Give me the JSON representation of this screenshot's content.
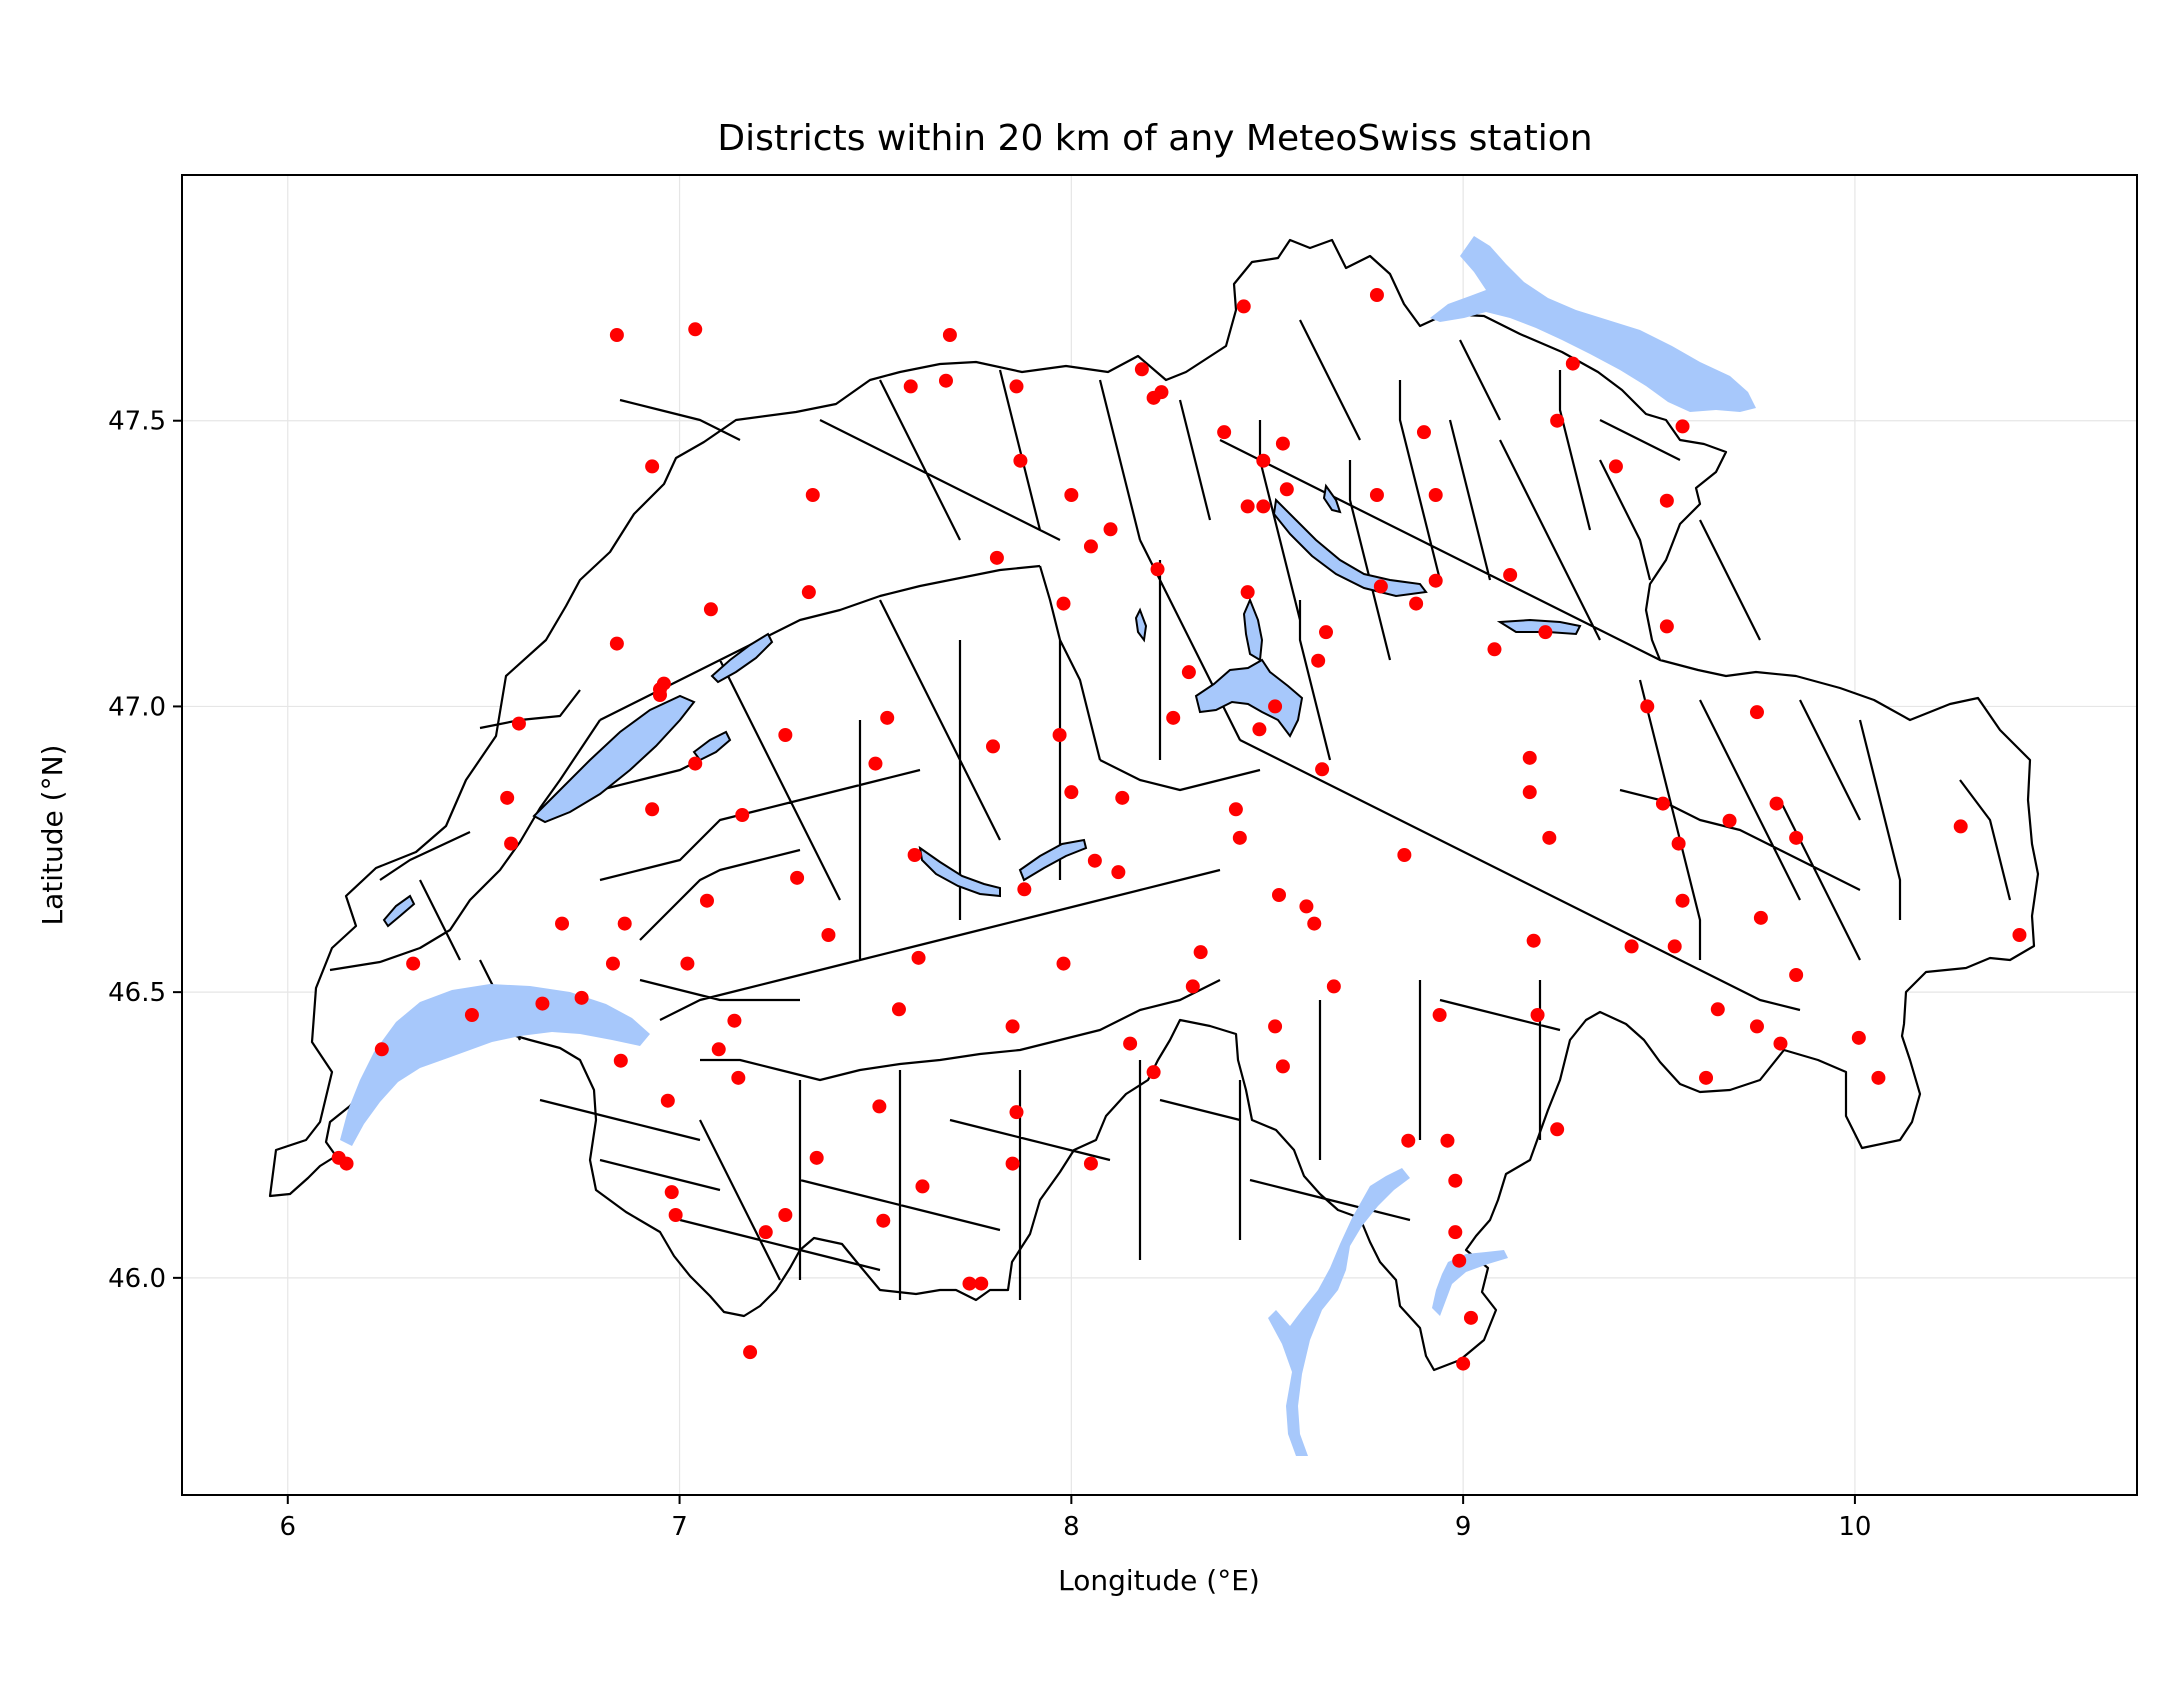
{
  "chart_data": {
    "type": "scatter",
    "title": "Districts within 20 km of any MeteoSwiss station",
    "xlabel": "Longitude (°E)",
    "ylabel": "Latitude (°N)",
    "xlim": [
      5.73,
      10.72
    ],
    "ylim": [
      45.62,
      47.93
    ],
    "xticks": [
      6,
      7,
      8,
      9,
      10
    ],
    "xtick_labels": [
      "6",
      "7",
      "8",
      "9",
      "10"
    ],
    "yticks": [
      46.0,
      46.5,
      47.0,
      47.5
    ],
    "ytick_labels": [
      "46.0",
      "46.5",
      "47.0",
      "47.5"
    ],
    "grid": true,
    "colors": {
      "points": "#ff0000",
      "lakes": "#a7c8fb",
      "borders": "#000000",
      "background": "#ffffff"
    },
    "series": [
      {
        "marker": "dot",
        "x": [
          6.13,
          6.15,
          6.24,
          6.32,
          6.47,
          6.57,
          6.56,
          6.59,
          6.65,
          6.7,
          6.75,
          6.83,
          6.84,
          6.86,
          6.85,
          6.93,
          6.95,
          6.97,
          6.98,
          7.04,
          7.08,
          7.07,
          7.1,
          7.14,
          7.15,
          7.16,
          7.02,
          6.95,
          6.99,
          6.93,
          7.22,
          7.27,
          7.27,
          7.3,
          7.35,
          7.34,
          7.38,
          7.33,
          7.51,
          7.52,
          7.5,
          7.53,
          7.56,
          7.6,
          7.61,
          7.62,
          7.59,
          7.68,
          7.74,
          7.77,
          7.81,
          7.8,
          7.85,
          7.85,
          7.86,
          7.87,
          7.88,
          7.86,
          7.97,
          7.98,
          7.98,
          8.0,
          8.0,
          8.05,
          8.05,
          8.06,
          8.1,
          8.13,
          8.12,
          8.15,
          8.18,
          8.21,
          8.22,
          8.23,
          8.21,
          8.26,
          8.3,
          8.31,
          8.33,
          8.39,
          8.42,
          8.43,
          8.44,
          8.45,
          8.45,
          8.48,
          8.49,
          8.49,
          8.52,
          8.53,
          8.52,
          8.54,
          8.54,
          8.55,
          8.6,
          8.62,
          8.63,
          8.64,
          8.65,
          8.67,
          8.78,
          8.79,
          8.78,
          8.85,
          8.86,
          8.88,
          8.9,
          8.93,
          8.93,
          8.94,
          8.96,
          8.98,
          8.98,
          8.99,
          9.0,
          9.02,
          9.08,
          9.12,
          9.17,
          9.17,
          9.18,
          9.19,
          9.21,
          9.22,
          9.24,
          9.24,
          9.28,
          9.39,
          9.43,
          9.47,
          9.51,
          9.52,
          9.52,
          9.54,
          9.55,
          9.56,
          9.56,
          9.62,
          9.65,
          9.68,
          9.75,
          9.76,
          9.75,
          9.8,
          9.81,
          9.85,
          9.85,
          10.01,
          10.06,
          10.27,
          10.42,
          6.96,
          7.18,
          7.69,
          7.04,
          6.84
        ],
        "y": [
          46.21,
          46.2,
          46.4,
          46.55,
          46.46,
          46.76,
          46.84,
          46.97,
          46.48,
          46.62,
          46.49,
          46.55,
          47.11,
          46.62,
          46.38,
          46.82,
          47.03,
          46.31,
          46.15,
          46.9,
          47.17,
          46.66,
          46.4,
          46.45,
          46.35,
          46.81,
          46.55,
          47.02,
          46.11,
          47.42,
          46.08,
          46.11,
          46.95,
          46.7,
          46.21,
          47.37,
          46.6,
          47.2,
          46.3,
          46.1,
          46.9,
          46.98,
          46.47,
          46.74,
          46.56,
          46.16,
          47.56,
          47.57,
          45.99,
          45.99,
          47.26,
          46.93,
          46.2,
          46.44,
          47.56,
          47.43,
          46.68,
          46.29,
          46.95,
          46.55,
          47.18,
          47.37,
          46.85,
          46.2,
          47.28,
          46.73,
          47.31,
          46.84,
          46.71,
          46.41,
          47.59,
          46.36,
          47.24,
          47.55,
          47.54,
          46.98,
          47.06,
          46.51,
          46.57,
          47.48,
          46.82,
          46.77,
          47.7,
          47.2,
          47.35,
          46.96,
          47.35,
          47.43,
          47.0,
          46.67,
          46.44,
          46.37,
          47.46,
          47.38,
          46.65,
          46.62,
          47.08,
          46.89,
          47.13,
          46.51,
          47.72,
          47.21,
          47.37,
          46.74,
          46.24,
          47.18,
          47.48,
          47.37,
          47.22,
          46.46,
          46.24,
          46.17,
          46.08,
          46.03,
          45.85,
          45.93,
          47.1,
          47.23,
          46.91,
          46.85,
          46.59,
          46.46,
          47.13,
          46.77,
          47.5,
          46.26,
          47.6,
          47.42,
          46.58,
          47.0,
          46.83,
          47.14,
          47.36,
          46.58,
          46.76,
          47.49,
          46.66,
          46.35,
          46.47,
          46.8,
          46.99,
          46.63,
          46.44,
          46.83,
          46.41,
          46.77,
          46.53,
          46.42,
          46.35,
          46.79,
          46.6,
          47.04,
          45.87,
          47.65,
          47.66,
          47.65
        ]
      }
    ]
  }
}
